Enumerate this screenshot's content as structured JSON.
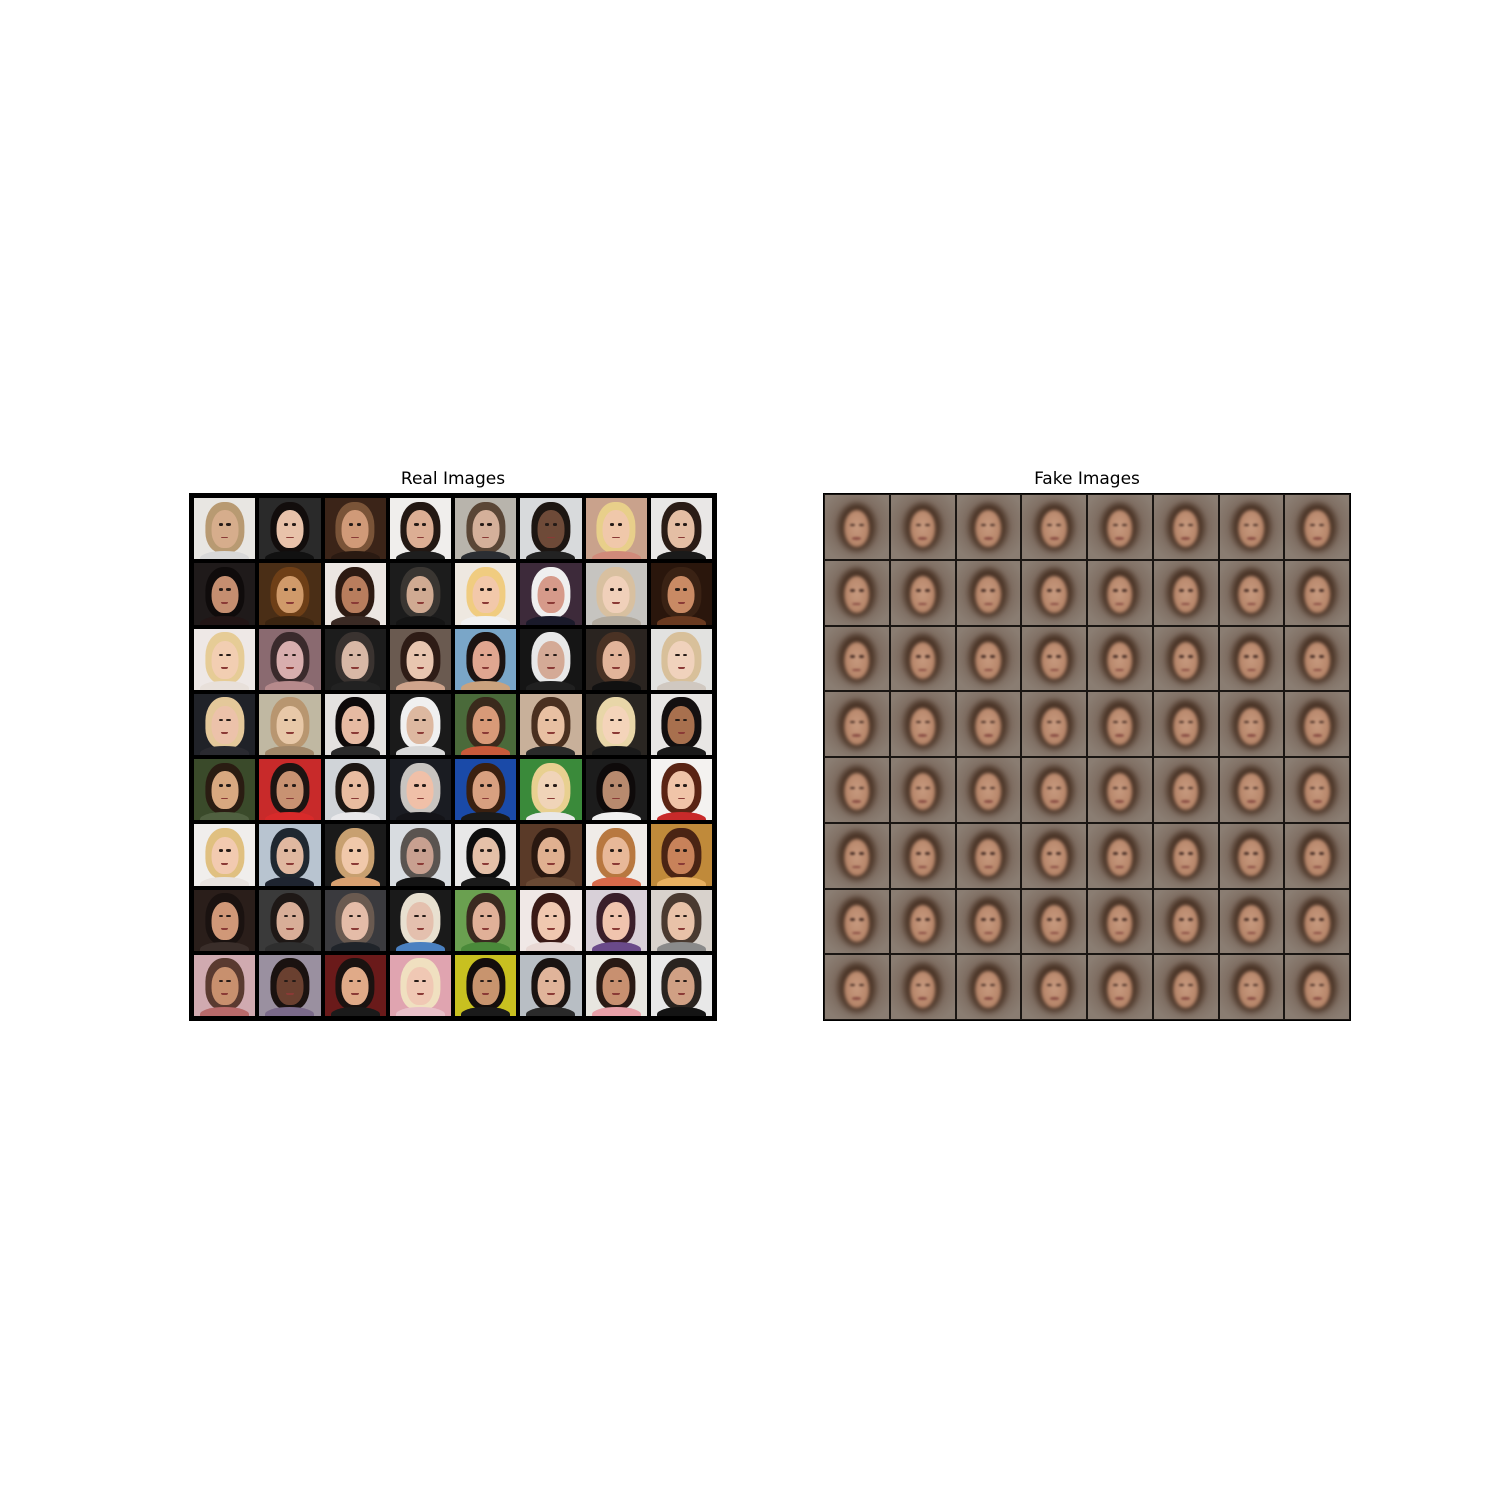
{
  "panels": {
    "real": {
      "title": "Real Images"
    },
    "fake": {
      "title": "Fake Images"
    }
  },
  "grid": {
    "rows": 8,
    "cols": 8
  },
  "colors": {
    "real_grid_border": "#000000",
    "fake_grid_border": "#1a1613",
    "fake_background": "#7d6b5f",
    "fake_face": "#c79a7f"
  },
  "real_tiles": [
    {
      "bg": "#e8e6e2",
      "hair": "#b89a72",
      "skin": "#d6ad8c",
      "shirt": "#d8d8d8"
    },
    {
      "bg": "#2a2a2a",
      "hair": "#120d0c",
      "skin": "#e8c2aa",
      "shirt": "#111111"
    },
    {
      "bg": "#3b2418",
      "hair": "#7a5438",
      "skin": "#d09a78",
      "shirt": "#2a1a12"
    },
    {
      "bg": "#f0eeec",
      "hair": "#231813",
      "skin": "#dcae94",
      "shirt": "#1e1e1e"
    },
    {
      "bg": "#b8b4ac",
      "hair": "#5a4636",
      "skin": "#d4b09a",
      "shirt": "#2b2e33"
    },
    {
      "bg": "#d8dadc",
      "hair": "#1d1612",
      "skin": "#6e4a38",
      "shirt": "#222222"
    },
    {
      "bg": "#c9a28c",
      "hair": "#e8cf8a",
      "skin": "#f0c8aa",
      "shirt": "#d08a7a"
    },
    {
      "bg": "#e9e7e6",
      "hair": "#2a1c16",
      "skin": "#e4bea4",
      "shirt": "#1a1a1a"
    },
    {
      "bg": "#1f1a1a",
      "hair": "#0f0b0b",
      "skin": "#c58e70",
      "shirt": "#221515"
    },
    {
      "bg": "#4a2e16",
      "hair": "#6e3f17",
      "skin": "#d09a6a",
      "shirt": "#3a2410"
    },
    {
      "bg": "#ece6e2",
      "hair": "#2d1a12",
      "skin": "#b87d5d",
      "shirt": "#3a2a24"
    },
    {
      "bg": "#1c1c1c",
      "hair": "#3a3632",
      "skin": "#d0aa92",
      "shirt": "#141414"
    },
    {
      "bg": "#eee8e0",
      "hair": "#f0cc80",
      "skin": "#f2c8aa",
      "shirt": "#f1f1f1"
    },
    {
      "bg": "#3d2a3a",
      "hair": "#efefef",
      "skin": "#d69a8a",
      "shirt": "#1a1a2a"
    },
    {
      "bg": "#c6c4c0",
      "hair": "#d8c0a0",
      "skin": "#f0d0ba",
      "shirt": "#b0a89c"
    },
    {
      "bg": "#2a160c",
      "hair": "#3a2214",
      "skin": "#c98a64",
      "shirt": "#6a3a20"
    },
    {
      "bg": "#eee8e6",
      "hair": "#e6cc96",
      "skin": "#f2ceb2",
      "shirt": "#e8e0da"
    },
    {
      "bg": "#8a6a70",
      "hair": "#3a2a2c",
      "skin": "#d8aeae",
      "shirt": "#b68a8c"
    },
    {
      "bg": "#1c1c1c",
      "hair": "#3a3330",
      "skin": "#d8b8a6",
      "shirt": "#222222"
    },
    {
      "bg": "#6a5a50",
      "hair": "#2e1c16",
      "skin": "#e8c6b0",
      "shirt": "#cfa48c"
    },
    {
      "bg": "#7aa6c8",
      "hair": "#1c1412",
      "skin": "#e0a690",
      "shirt": "#caa27e"
    },
    {
      "bg": "#151515",
      "hair": "#e8e8e8",
      "skin": "#d4aa96",
      "shirt": "#202020"
    },
    {
      "bg": "#2a2420",
      "hair": "#4a3224",
      "skin": "#e2b49a",
      "shirt": "#111111"
    },
    {
      "bg": "#e2e2e0",
      "hair": "#d8c09a",
      "skin": "#f0d2bc",
      "shirt": "#d0c8c0"
    },
    {
      "bg": "#202228",
      "hair": "#e4c89a",
      "skin": "#ecc2aa",
      "shirt": "#2a2a30"
    },
    {
      "bg": "#c0b8a2",
      "hair": "#b89670",
      "skin": "#e8c8a8",
      "shirt": "#a08668"
    },
    {
      "bg": "#e4e2e0",
      "hair": "#0e0a0a",
      "skin": "#e6baa2",
      "shirt": "#2a2a2a"
    },
    {
      "bg": "#1a1a1a",
      "hair": "#f0f0f0",
      "skin": "#ddb8a0",
      "shirt": "#d8d8d8"
    },
    {
      "bg": "#4a6a3a",
      "hair": "#3a2a1c",
      "skin": "#d89a78",
      "shirt": "#c85a3a"
    },
    {
      "bg": "#c8b09a",
      "hair": "#4a3020",
      "skin": "#e8c0a2",
      "shirt": "#2a2a2a"
    },
    {
      "bg": "#2a2622",
      "hair": "#e8d6a8",
      "skin": "#f4d4ba",
      "shirt": "#1a1a1a"
    },
    {
      "bg": "#e8e6e4",
      "hair": "#141010",
      "skin": "#a8704e",
      "shirt": "#1a1a1a"
    },
    {
      "bg": "#3a4a2a",
      "hair": "#2a1c12",
      "skin": "#d8a880",
      "shirt": "#506040"
    },
    {
      "bg": "#c82a2a",
      "hair": "#1c1412",
      "skin": "#c89272",
      "shirt": "#d82a2a"
    },
    {
      "bg": "#d0d4d8",
      "hair": "#1c1612",
      "skin": "#e8bca0",
      "shirt": "#e8e8ea"
    },
    {
      "bg": "#1a1c22",
      "hair": "#c8c4c0",
      "skin": "#f0c0a8",
      "shirt": "#141418"
    },
    {
      "bg": "#1a4aa8",
      "hair": "#3a2010",
      "skin": "#d8a080",
      "shirt": "#1a1a1a"
    },
    {
      "bg": "#3a8a3a",
      "hair": "#e8d090",
      "skin": "#f0d4b8",
      "shirt": "#e8e8e8"
    },
    {
      "bg": "#1c1c1c",
      "hair": "#0e0a0a",
      "skin": "#b88a6e",
      "shirt": "#f0f0f0"
    },
    {
      "bg": "#f4f2f0",
      "hair": "#5a2414",
      "skin": "#f0c4a8",
      "shirt": "#c82a2a"
    },
    {
      "bg": "#f0eeec",
      "hair": "#e0c080",
      "skin": "#f2cab0",
      "shirt": "#e8e2de"
    },
    {
      "bg": "#b8c4d0",
      "hair": "#202830",
      "skin": "#e0b8a0",
      "shirt": "#1e2430"
    },
    {
      "bg": "#1a1a1a",
      "hair": "#c8a070",
      "skin": "#f0c8aa",
      "shirt": "#d8a070"
    },
    {
      "bg": "#d8dce0",
      "hair": "#5a5450",
      "skin": "#c8a090",
      "shirt": "#141414"
    },
    {
      "bg": "#e8e8e8",
      "hair": "#0e0e0e",
      "skin": "#e4c0a8",
      "shirt": "#1a1a1a"
    },
    {
      "bg": "#5a3a28",
      "hair": "#2a1810",
      "skin": "#e0b090",
      "shirt": "#6a4a34"
    },
    {
      "bg": "#f0ece8",
      "hair": "#b87840",
      "skin": "#e8b898",
      "shirt": "#d86a4a"
    },
    {
      "bg": "#c08a3a",
      "hair": "#4a2414",
      "skin": "#c8825a",
      "shirt": "#e8b060"
    },
    {
      "bg": "#2a1e1a",
      "hair": "#1a1210",
      "skin": "#d09878",
      "shirt": "#3a2e2a"
    },
    {
      "bg": "#3a3a3a",
      "hair": "#1e1816",
      "skin": "#d8ae98",
      "shirt": "#2e2e2e"
    },
    {
      "bg": "#3a3a3e",
      "hair": "#6a5a50",
      "skin": "#e4bca8",
      "shirt": "#20242a"
    },
    {
      "bg": "#1a1a1a",
      "hair": "#e8e0d0",
      "skin": "#e4c0ae",
      "shirt": "#4a80c0"
    },
    {
      "bg": "#6aa050",
      "hair": "#3a2a20",
      "skin": "#e0b098",
      "shirt": "#4a8a3a"
    },
    {
      "bg": "#f0e8e6",
      "hair": "#3a1a16",
      "skin": "#f0c8b0",
      "shirt": "#e8d8d4"
    },
    {
      "bg": "#d8d0d8",
      "hair": "#3a1e2a",
      "skin": "#f0c4ae",
      "shirt": "#6a4a8a"
    },
    {
      "bg": "#d8d2cc",
      "hair": "#4a3a30",
      "skin": "#e8c2a8",
      "shirt": "#8a8a8a"
    },
    {
      "bg": "#d0aab0",
      "hair": "#5a3a30",
      "skin": "#c8906e",
      "shirt": "#b86a6a"
    },
    {
      "bg": "#9a90a0",
      "hair": "#1a1210",
      "skin": "#6a4030",
      "shirt": "#7a6a8a"
    },
    {
      "bg": "#6a1a1a",
      "hair": "#1a1210",
      "skin": "#e0aa88",
      "shirt": "#1a1a1a"
    },
    {
      "bg": "#e0a4b0",
      "hair": "#f0e0c0",
      "skin": "#f0c8b4",
      "shirt": "#e8c0c8"
    },
    {
      "bg": "#c8c020",
      "hair": "#140e0c",
      "skin": "#c8946e",
      "shirt": "#1a1a1a"
    },
    {
      "bg": "#b8bec4",
      "hair": "#1a1412",
      "skin": "#e0b49a",
      "shirt": "#2a2a2a"
    },
    {
      "bg": "#e8e6e0",
      "hair": "#2a1a14",
      "skin": "#c89070",
      "shirt": "#e8a0a8"
    },
    {
      "bg": "#e8e8e8",
      "hair": "#2a2420",
      "skin": "#d0a084",
      "shirt": "#141414"
    }
  ]
}
